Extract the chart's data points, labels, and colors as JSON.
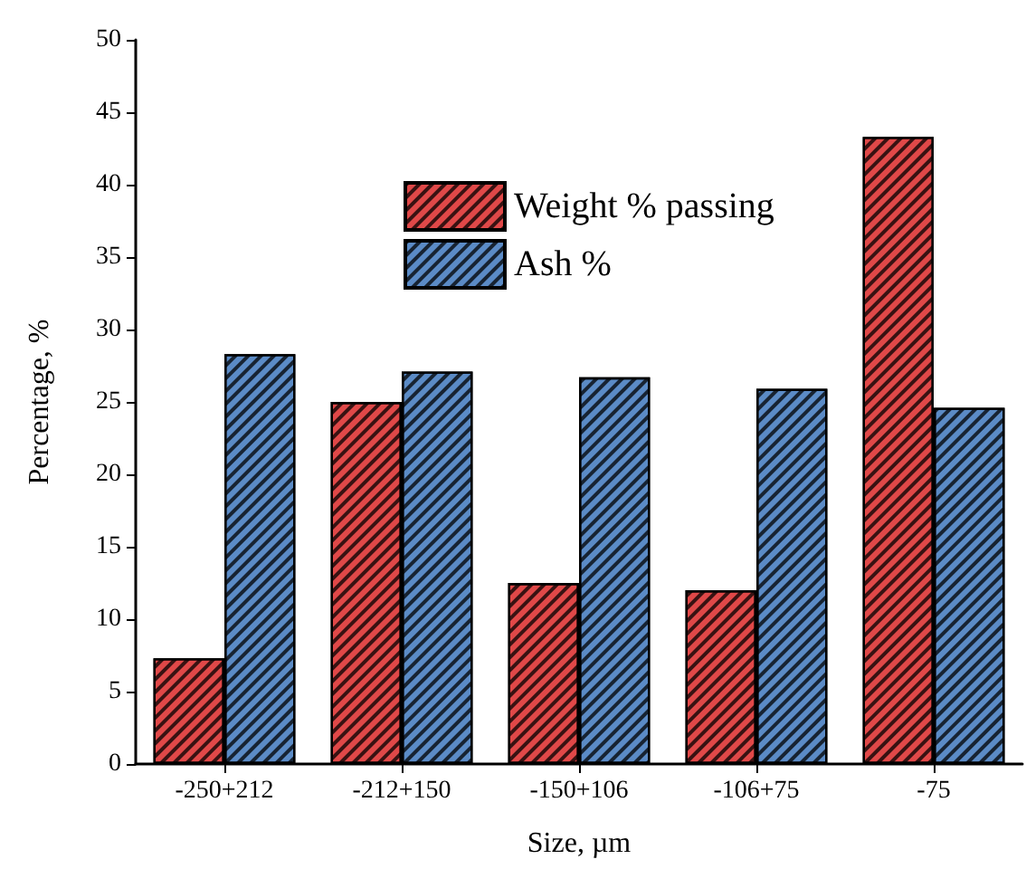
{
  "chart_data": {
    "type": "bar",
    "xlabel": "Size, µm",
    "ylabel": "Percentage, %",
    "categories": [
      "-250+212",
      "-212+150",
      "-150+106",
      "-106+75",
      "-75"
    ],
    "series": [
      {
        "name": "Weight % passing",
        "color": "#e04848",
        "values": [
          7.3,
          25.0,
          12.5,
          12.0,
          43.3
        ]
      },
      {
        "name": "Ash %",
        "color": "#5b8bc6",
        "values": [
          28.3,
          27.1,
          26.7,
          25.9,
          24.6
        ]
      }
    ],
    "ylim": [
      0,
      50
    ],
    "yticks": [
      0,
      5,
      10,
      15,
      20,
      25,
      30,
      35,
      40,
      45,
      50
    ],
    "grid": false,
    "legend": "top center"
  }
}
